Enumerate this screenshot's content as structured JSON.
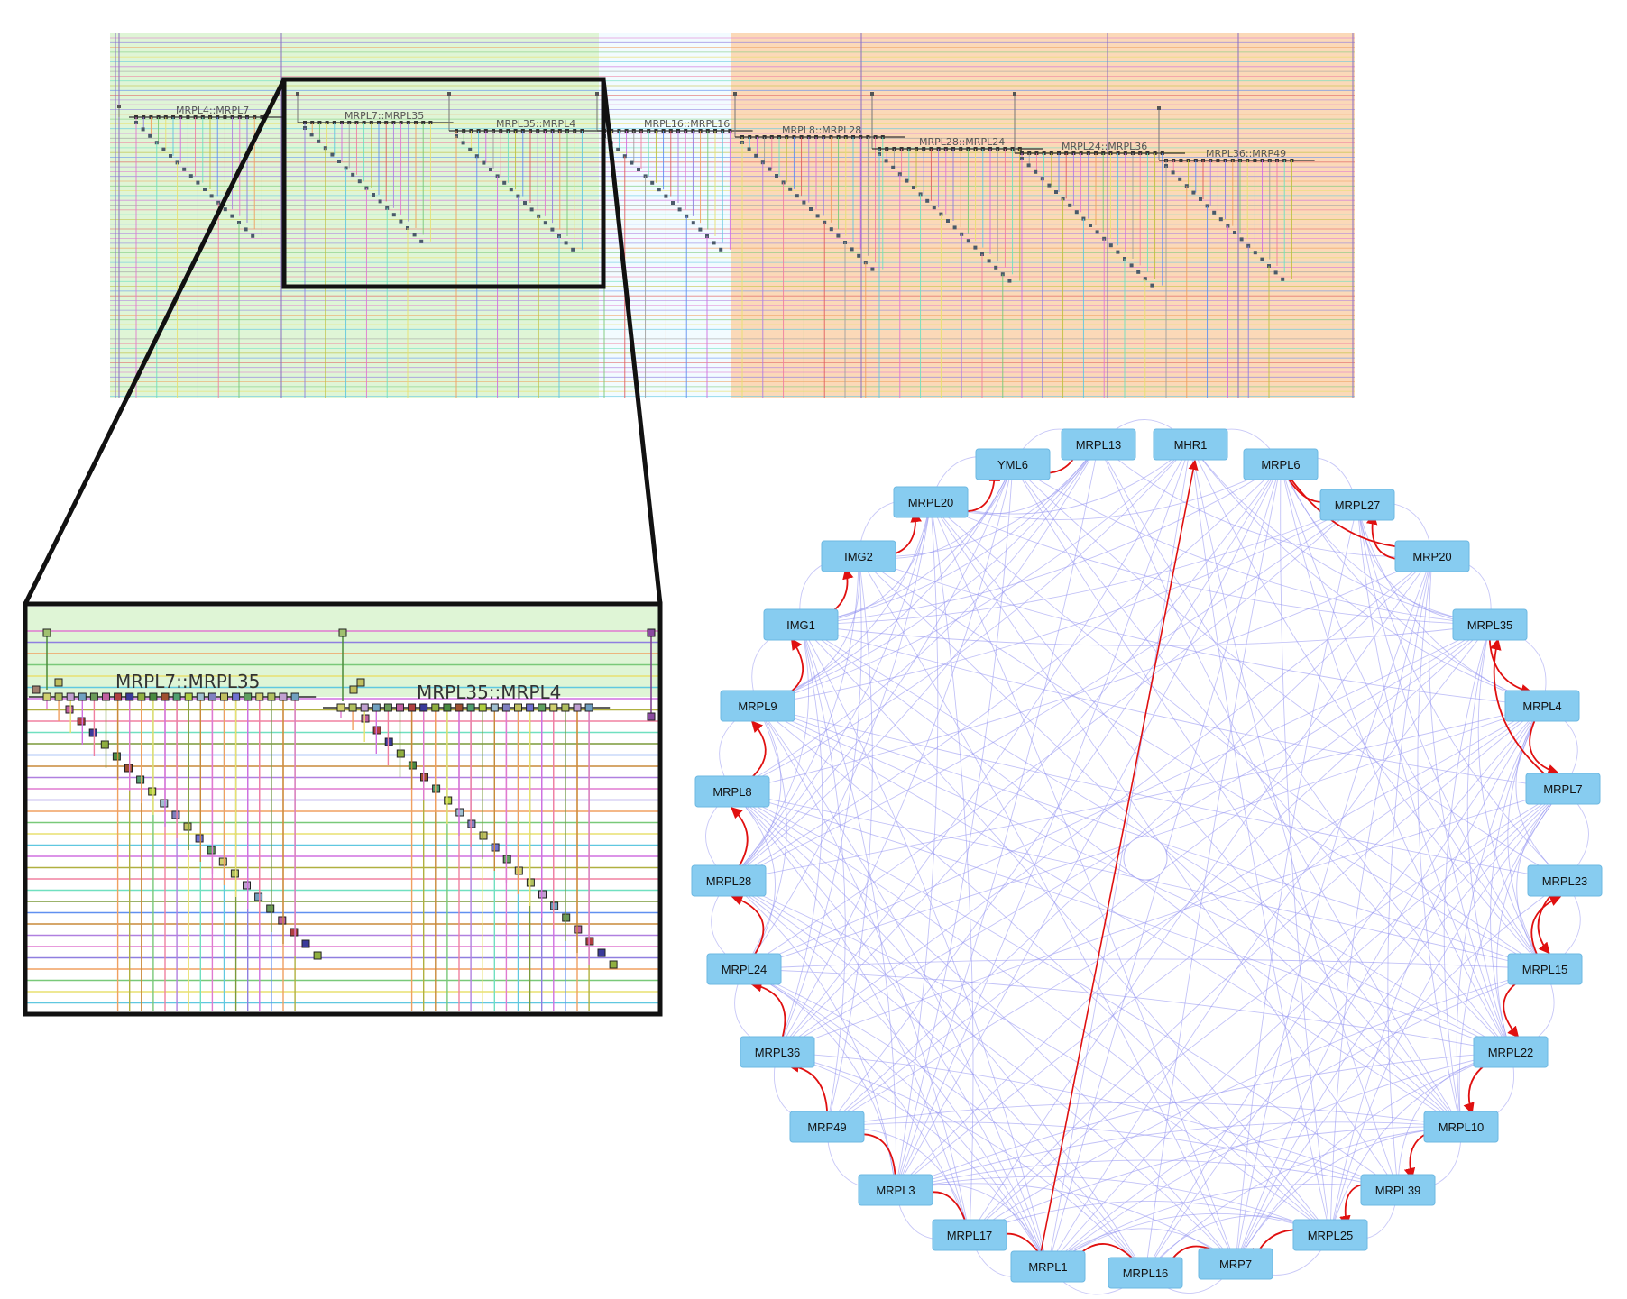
{
  "colors": {
    "green_region": "#dff5d6",
    "orange_region": "#fbd9b8",
    "network_edge": "#8f8ff0",
    "highlight_edge": "#e01010",
    "node_fill": "#87ccf0",
    "frame": "#111111"
  },
  "pairwise_view": {
    "labels": [
      "MRPL4::MRPL7",
      "MRPL7::MRPL35",
      "MRPL35::MRPL4",
      "MRPL16::MRPL16",
      "MRPL8::MRPL28",
      "MRPL28::MRPL24",
      "MRPL24::MRPL36",
      "MRPL36::MRP49"
    ]
  },
  "zoom_view": {
    "labels": [
      "MRPL7::MRPL35",
      "MRPL35::MRPL4"
    ]
  },
  "network": {
    "nodes": [
      "MHR1",
      "MRPL6",
      "MRPL27",
      "MRP20",
      "MRPL35",
      "MRPL4",
      "MRPL7",
      "MRPL23",
      "MRPL15",
      "MRPL22",
      "MRPL10",
      "MRPL39",
      "MRPL25",
      "MRP7",
      "MRPL16",
      "MRPL1",
      "MRPL17",
      "MRPL3",
      "MRP49",
      "MRPL36",
      "MRPL24",
      "MRPL28",
      "MRPL8",
      "MRPL9",
      "IMG1",
      "IMG2",
      "MRPL20",
      "YML6",
      "MRPL13"
    ],
    "highlighted_edges": [
      [
        "MRPL6",
        "MRPL27"
      ],
      [
        "MRPL6",
        "MRP20"
      ],
      [
        "MRP20",
        "MRPL27"
      ],
      [
        "MRPL35",
        "MRPL4"
      ],
      [
        "MRPL4",
        "MRPL7"
      ],
      [
        "MRPL7",
        "MRPL35"
      ],
      [
        "MRPL23",
        "MRPL15"
      ],
      [
        "MRPL15",
        "MRPL23"
      ],
      [
        "MRPL15",
        "MRPL22"
      ],
      [
        "MRPL22",
        "MRPL10"
      ],
      [
        "MRPL10",
        "MRPL39"
      ],
      [
        "MRPL39",
        "MRPL25"
      ],
      [
        "MRPL25",
        "MRP7"
      ],
      [
        "MRP7",
        "MRPL16"
      ],
      [
        "MRPL16",
        "MRPL1"
      ],
      [
        "MRPL1",
        "MRPL17"
      ],
      [
        "MRPL17",
        "MRPL3"
      ],
      [
        "MRPL3",
        "MRP49"
      ],
      [
        "MRP49",
        "MRPL36"
      ],
      [
        "MRPL36",
        "MRPL24"
      ],
      [
        "MRPL24",
        "MRPL28"
      ],
      [
        "MRPL28",
        "MRPL8"
      ],
      [
        "MRPL8",
        "MRPL9"
      ],
      [
        "MRPL9",
        "IMG1"
      ],
      [
        "IMG1",
        "IMG2"
      ],
      [
        "IMG2",
        "MRPL20"
      ],
      [
        "MRPL20",
        "YML6"
      ],
      [
        "YML6",
        "MRPL13"
      ],
      [
        "MRPL1",
        "MHR1"
      ]
    ]
  }
}
